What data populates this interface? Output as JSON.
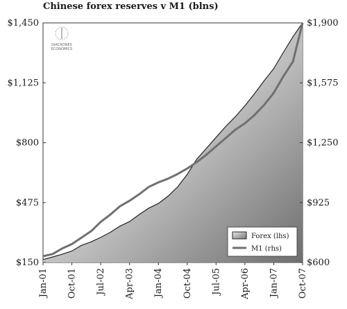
{
  "chart_data": {
    "type": "area",
    "title": "Chinese forex reserves v M1 (blns)",
    "x_ticks": [
      "Jan-01",
      "Oct-01",
      "Jul-02",
      "Apr-03",
      "Jan-04",
      "Oct-04",
      "Jul-05",
      "Apr-06",
      "Jan-07",
      "Oct-07"
    ],
    "y_left": {
      "ylim": [
        150,
        1450
      ],
      "ticks": [
        "$150",
        "$475",
        "$800",
        "$1,125",
        "$1,450"
      ]
    },
    "y_right": {
      "ylim": [
        600,
        1900
      ],
      "ticks": [
        "$600",
        "$925",
        "$1,250",
        "$1,575",
        "$1,900"
      ]
    },
    "legend": {
      "placement": "bottom-right"
    },
    "x_months": [
      0,
      3,
      6,
      9,
      12,
      15,
      18,
      21,
      24,
      27,
      30,
      33,
      36,
      39,
      42,
      45,
      48,
      51,
      54,
      57,
      60,
      63,
      66,
      69,
      72,
      75,
      78,
      81
    ],
    "series": [
      {
        "name": "Forex (lhs)",
        "kind": "area",
        "axis": "left",
        "color": "#999999",
        "values": [
          166,
          180,
          195,
          212,
          243,
          262,
          286,
          314,
          347,
          372,
          410,
          445,
          470,
          510,
          560,
          628,
          711,
          770,
          829,
          888,
          941,
          1000,
          1066,
          1136,
          1202,
          1290,
          1375,
          1450
        ]
      },
      {
        "name": "M1 (rhs)",
        "kind": "line",
        "axis": "right",
        "color": "#707070",
        "values": [
          634,
          646,
          676,
          700,
          735,
          770,
          820,
          860,
          905,
          935,
          970,
          1010,
          1035,
          1055,
          1080,
          1110,
          1145,
          1185,
          1230,
          1275,
          1320,
          1355,
          1400,
          1455,
          1520,
          1610,
          1690,
          1900
        ]
      }
    ]
  },
  "logo": {
    "line1": "DIACRONES",
    "line2": "ECONOMICS"
  }
}
